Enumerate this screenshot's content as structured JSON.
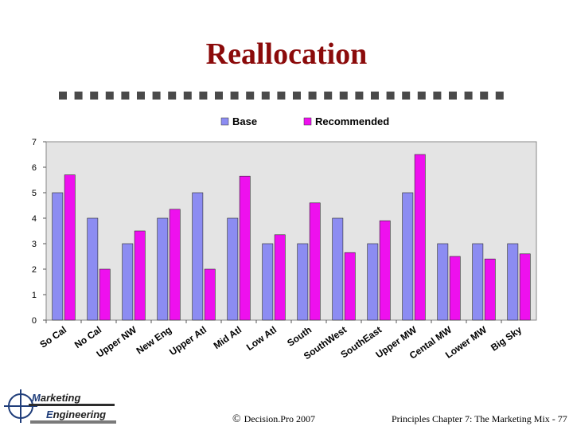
{
  "slide": {
    "title": "Reallocation",
    "footer_left_symbol": "©",
    "footer_left": "Decision.Pro 2007",
    "footer_right": "Principles Chapter 7: The Marketing Mix - 77"
  },
  "logo": {
    "line1_initial": "M",
    "line1_rest": "arketing",
    "line2_initial": "E",
    "line2_rest": "ngineering"
  },
  "colors": {
    "title": "#8b0a0a",
    "base": "#8c8cf2",
    "recommended": "#ee10ee",
    "plot_bg": "#e4e4e4",
    "divider": "#4a4a4a"
  },
  "chart_data": {
    "type": "bar",
    "title": "",
    "xlabel": "",
    "ylabel": "",
    "ylim": [
      0,
      7
    ],
    "yticks": [
      0,
      1,
      2,
      3,
      4,
      5,
      6,
      7
    ],
    "legend_position": "top",
    "categories": [
      "So Cal",
      "No Cal",
      "Upper NW",
      "New Eng",
      "Upper Atl",
      "Mid Atl",
      "Low Atl",
      "South",
      "SouthWest",
      "SouthEast",
      "Upper MW",
      "Cental MW",
      "Lower MW",
      "Big Sky"
    ],
    "series": [
      {
        "name": "Base",
        "color": "#8c8cf2",
        "values": [
          5,
          4,
          3,
          4,
          5,
          4,
          3,
          3,
          4,
          3,
          5,
          3,
          3,
          3
        ]
      },
      {
        "name": "Recommended",
        "color": "#ee10ee",
        "values": [
          5.7,
          2,
          3.5,
          4.35,
          2,
          5.65,
          3.35,
          4.6,
          2.65,
          3.9,
          6.5,
          2.5,
          2.4,
          2.6
        ]
      }
    ]
  }
}
